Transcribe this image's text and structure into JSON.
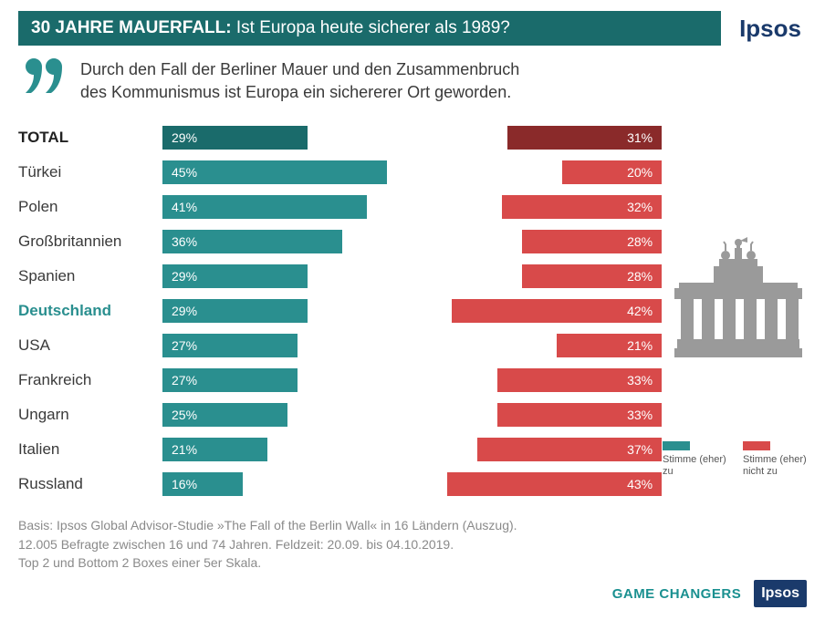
{
  "colors": {
    "title_bg": "#1a6b6b",
    "agree": "#2a8f8f",
    "agree_total": "#1a6b6b",
    "disagree": "#d84a4a",
    "disagree_total": "#8a2a2a",
    "highlight_label": "#2a8f8f",
    "gate_fill": "#9a9a9a",
    "brand_blue": "#1a3a6b"
  },
  "header": {
    "title_bold": "30 JAHRE MAUERFALL:",
    "title_rest": " Ist Europa heute sicherer als 1989?",
    "brand": "Ipsos"
  },
  "quote": {
    "line1": "Durch den Fall der Berliner Mauer und den Zusammenbruch",
    "line2": "des Kommunismus ist Europa ein sichererer Ort geworden."
  },
  "chart": {
    "type": "diverging-bar",
    "axis_max_percent": 50,
    "rows": [
      {
        "label": "TOTAL",
        "agree": 29,
        "disagree": 31,
        "is_total": true
      },
      {
        "label": "Türkei",
        "agree": 45,
        "disagree": 20
      },
      {
        "label": "Polen",
        "agree": 41,
        "disagree": 32
      },
      {
        "label": "Großbritannien",
        "agree": 36,
        "disagree": 28
      },
      {
        "label": "Spanien",
        "agree": 29,
        "disagree": 28
      },
      {
        "label": "Deutschland",
        "agree": 29,
        "disagree": 42,
        "highlight": true
      },
      {
        "label": "USA",
        "agree": 27,
        "disagree": 21
      },
      {
        "label": "Frankreich",
        "agree": 27,
        "disagree": 33
      },
      {
        "label": "Ungarn",
        "agree": 25,
        "disagree": 33
      },
      {
        "label": "Italien",
        "agree": 21,
        "disagree": 37
      },
      {
        "label": "Russland",
        "agree": 16,
        "disagree": 43
      }
    ]
  },
  "legend": {
    "agree": "Stimme (eher) zu",
    "disagree": "Stimme (eher) nicht zu"
  },
  "footer": {
    "line1": "Basis: Ipsos Global Advisor-Studie »The Fall of the Berlin Wall« in 16 Ländern (Auszug).",
    "line2": "12.005 Befragte zwischen 16 und 74 Jahren. Feldzeit: 20.09. bis 04.10.2019.",
    "line3": "Top 2 und Bottom 2 Boxes einer 5er Skala."
  },
  "bottom": {
    "game_changers": "GAME CHANGERS",
    "ipsos": "Ipsos"
  }
}
